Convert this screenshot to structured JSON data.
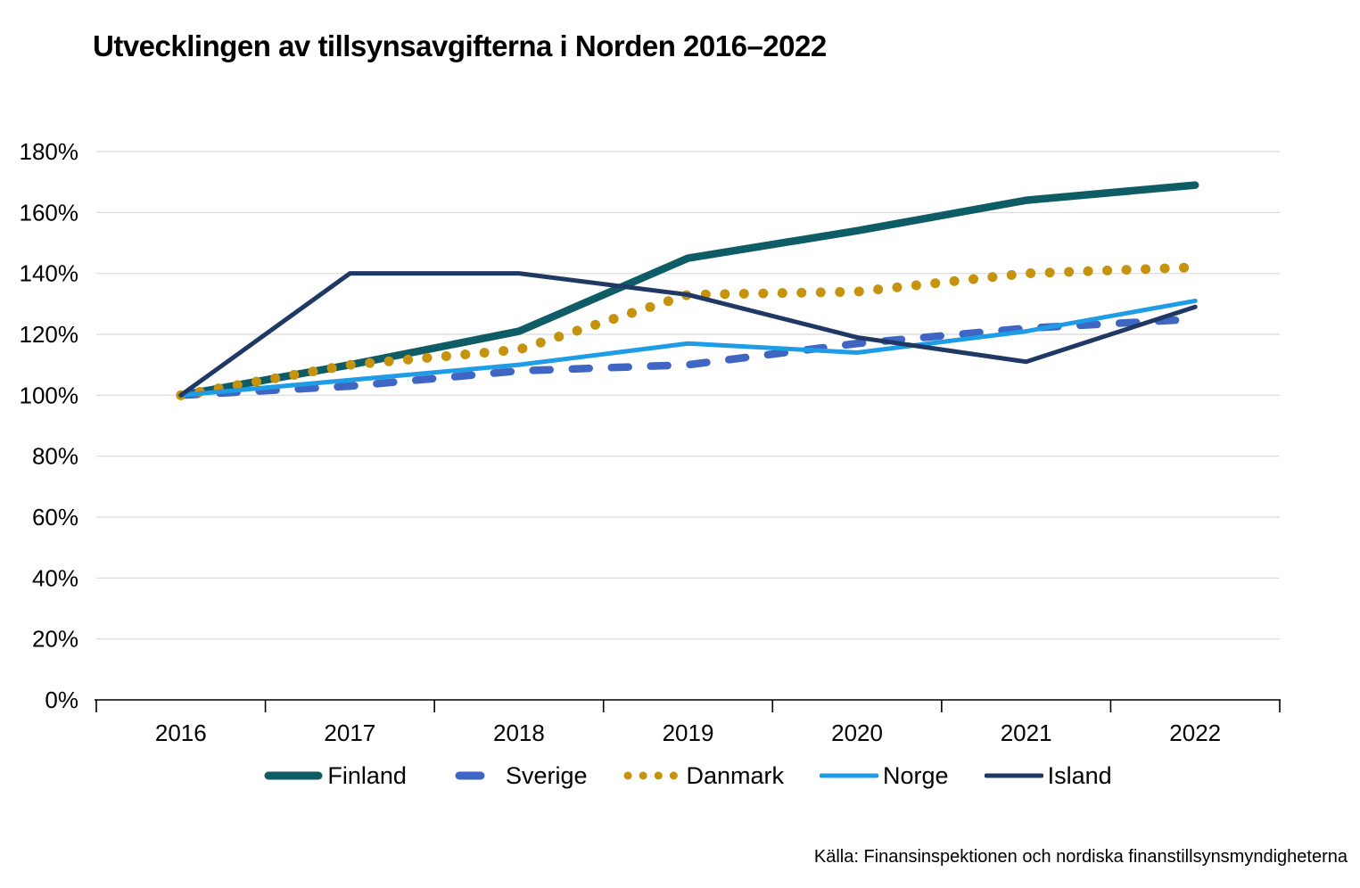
{
  "title": "Utvecklingen av tillsynsavgifterna i Norden 2016–2022",
  "source": "Källa: Finansinspektionen och nordiska finanstillsynsmyndigheterna",
  "chart_data": {
    "type": "line",
    "title": "Utvecklingen av tillsynsavgifterna i Norden 2016–2022",
    "categories": [
      "2016",
      "2017",
      "2018",
      "2019",
      "2020",
      "2021",
      "2022"
    ],
    "series": [
      {
        "name": "Finland",
        "style": "solid-thick",
        "color": "#0E5C66",
        "values": [
          100,
          110,
          121,
          145,
          154,
          164,
          169
        ]
      },
      {
        "name": "Sverige",
        "style": "dashed",
        "color": "#4066C4",
        "values": [
          100,
          103,
          108,
          110,
          117,
          122,
          125
        ]
      },
      {
        "name": "Danmark",
        "style": "dotted",
        "color": "#C5930E",
        "values": [
          100,
          110,
          115,
          133,
          134,
          140,
          142
        ]
      },
      {
        "name": "Norge",
        "style": "solid-thin",
        "color": "#1E9CE5",
        "values": [
          100,
          105,
          110,
          117,
          114,
          121,
          131
        ]
      },
      {
        "name": "Island",
        "style": "solid-thin",
        "color": "#203864",
        "values": [
          100,
          140,
          140,
          133,
          119,
          111,
          129
        ]
      }
    ],
    "ylabel": "",
    "xlabel": "",
    "ylim": [
      0,
      180
    ],
    "ytick_step": 20,
    "ytick_labels": [
      "0%",
      "20%",
      "40%",
      "60%",
      "80%",
      "100%",
      "120%",
      "140%",
      "160%",
      "180%"
    ],
    "grid": true,
    "legend_position": "bottom"
  },
  "colors": {
    "gridline": "#D9D9D9",
    "axis": "#000000",
    "text": "#000000",
    "background": "#FFFFFF"
  }
}
